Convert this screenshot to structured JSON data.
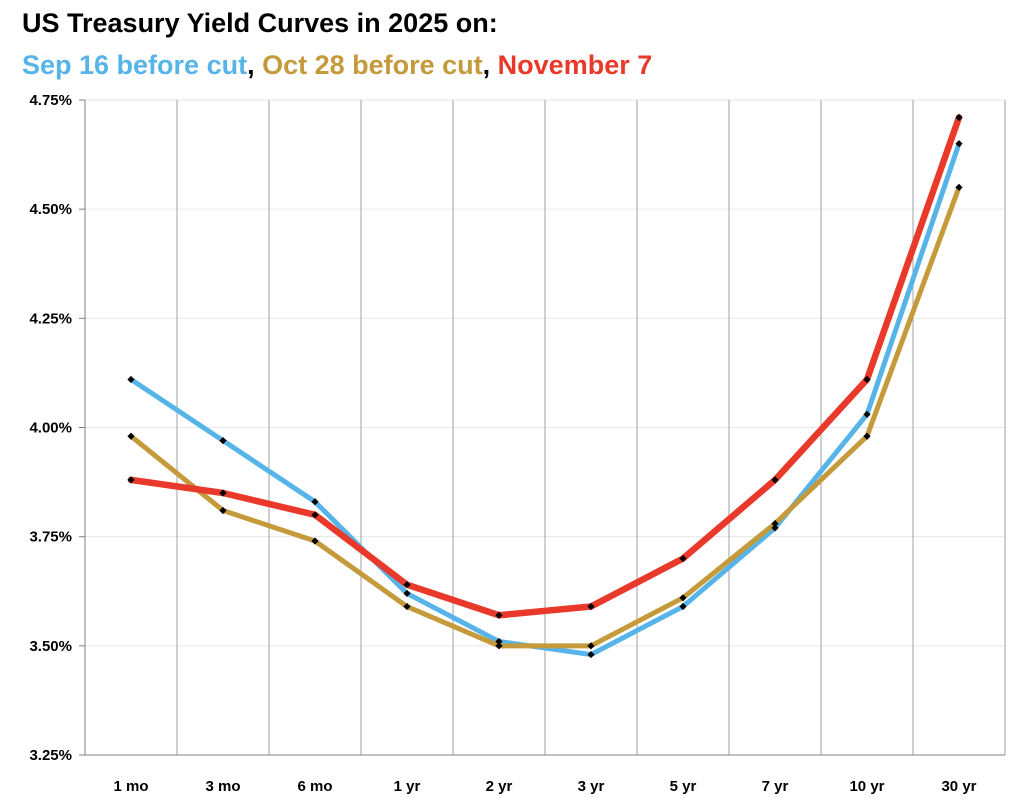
{
  "chart_data": {
    "type": "line",
    "title": "US Treasury Yield Curves in 2025 on:",
    "subtitle": {
      "parts": [
        {
          "text": "Sep 16 before cut",
          "color": "#56B4E9"
        },
        {
          "text": ", ",
          "color": "#000000"
        },
        {
          "text": "Oct 28 before cut",
          "color": "#C49A3A"
        },
        {
          "text": ", ",
          "color": "#000000"
        },
        {
          "text": "November 7",
          "color": "#E8392B"
        }
      ]
    },
    "categories": [
      "1 mo",
      "3 mo",
      "6 mo",
      "1 yr",
      "2 yr",
      "3 yr",
      "5 yr",
      "7 yr",
      "10 yr",
      "30 yr"
    ],
    "series": [
      {
        "name": "Sep 16 before cut",
        "color": "#56B4E9",
        "values": [
          4.11,
          3.97,
          3.83,
          3.62,
          3.51,
          3.48,
          3.59,
          3.77,
          4.03,
          4.65
        ]
      },
      {
        "name": "Oct 28 before cut",
        "color": "#C49A3A",
        "values": [
          3.98,
          3.81,
          3.74,
          3.59,
          3.5,
          3.5,
          3.61,
          3.78,
          3.98,
          4.55
        ]
      },
      {
        "name": "November 7",
        "color": "#E8392B",
        "values": [
          3.88,
          3.85,
          3.8,
          3.64,
          3.57,
          3.59,
          3.7,
          3.88,
          4.11,
          4.71
        ]
      }
    ],
    "ylim": [
      3.25,
      4.75
    ],
    "yticks": [
      3.25,
      3.5,
      3.75,
      4.0,
      4.25,
      4.5,
      4.75
    ],
    "ytick_labels": [
      "3.25%",
      "3.50%",
      "3.75%",
      "4.00%",
      "4.25%",
      "4.50%",
      "4.75%"
    ],
    "xlabel": "",
    "ylabel": "",
    "grid": true,
    "marker": "diamond",
    "marker_color": "#000000"
  }
}
